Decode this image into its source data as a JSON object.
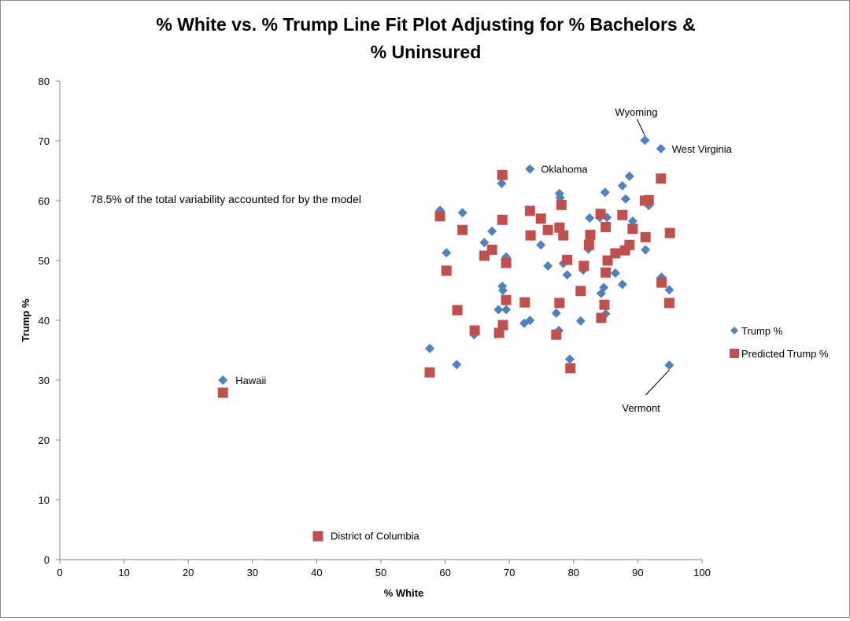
{
  "chart_data": {
    "type": "scatter",
    "title": "% White  vs. % Trump Line Fit Plot Adjusting for % Bachelors & % Uninsured",
    "title_lines": [
      "% White  vs. % Trump Line Fit Plot Adjusting for % Bachelors &",
      "% Uninsured"
    ],
    "xlabel": "% White",
    "ylabel": "Trump %",
    "xlim": [
      0,
      100
    ],
    "ylim": [
      0,
      80
    ],
    "xticks": [
      0,
      10,
      20,
      30,
      40,
      50,
      60,
      70,
      80,
      90,
      100
    ],
    "yticks": [
      0,
      10,
      20,
      30,
      40,
      50,
      60,
      70,
      80
    ],
    "grid": false,
    "legend_position": "right",
    "annotation": "78.5% of the total variability accounted for by the model",
    "series": [
      {
        "name": "Trump %",
        "marker": "diamond",
        "color": "#4f81bd",
        "points": [
          {
            "x": 25.4,
            "y": 30.0,
            "label": "Hawaii"
          },
          {
            "x": 40.2,
            "y": 4.0,
            "label": "District of Columbia"
          },
          {
            "x": 91.1,
            "y": 70.1,
            "label": "Wyoming"
          },
          {
            "x": 93.6,
            "y": 68.7,
            "label": "West Virginia"
          },
          {
            "x": 73.2,
            "y": 65.3,
            "label": "Oklahoma"
          },
          {
            "x": 94.9,
            "y": 32.5,
            "label": "Vermont"
          },
          {
            "x": 57.6,
            "y": 35.3
          },
          {
            "x": 59.2,
            "y": 58.4
          },
          {
            "x": 60.2,
            "y": 51.3
          },
          {
            "x": 61.8,
            "y": 32.6
          },
          {
            "x": 62.7,
            "y": 58.0
          },
          {
            "x": 64.5,
            "y": 37.6
          },
          {
            "x": 66.1,
            "y": 53.0
          },
          {
            "x": 67.3,
            "y": 54.9
          },
          {
            "x": 68.3,
            "y": 41.8
          },
          {
            "x": 68.8,
            "y": 62.9
          },
          {
            "x": 68.9,
            "y": 45.7
          },
          {
            "x": 69.0,
            "y": 45.0
          },
          {
            "x": 69.5,
            "y": 41.8
          },
          {
            "x": 69.5,
            "y": 50.6
          },
          {
            "x": 72.3,
            "y": 39.5
          },
          {
            "x": 73.2,
            "y": 40.0
          },
          {
            "x": 74.9,
            "y": 52.6
          },
          {
            "x": 76.0,
            "y": 49.1
          },
          {
            "x": 77.3,
            "y": 41.2
          },
          {
            "x": 77.7,
            "y": 38.3
          },
          {
            "x": 77.8,
            "y": 61.2
          },
          {
            "x": 77.9,
            "y": 60.5
          },
          {
            "x": 78.4,
            "y": 49.5
          },
          {
            "x": 79.0,
            "y": 47.6
          },
          {
            "x": 79.4,
            "y": 33.5
          },
          {
            "x": 81.1,
            "y": 39.9
          },
          {
            "x": 81.5,
            "y": 48.4
          },
          {
            "x": 82.3,
            "y": 51.9
          },
          {
            "x": 82.5,
            "y": 57.1
          },
          {
            "x": 84.1,
            "y": 57.2
          },
          {
            "x": 84.3,
            "y": 44.5
          },
          {
            "x": 84.7,
            "y": 45.5
          },
          {
            "x": 84.9,
            "y": 61.4
          },
          {
            "x": 85.0,
            "y": 41.1
          },
          {
            "x": 85.2,
            "y": 57.2
          },
          {
            "x": 86.5,
            "y": 47.9
          },
          {
            "x": 87.6,
            "y": 62.5
          },
          {
            "x": 87.6,
            "y": 46.0
          },
          {
            "x": 88.1,
            "y": 60.3
          },
          {
            "x": 88.7,
            "y": 64.1
          },
          {
            "x": 89.2,
            "y": 56.6
          },
          {
            "x": 91.2,
            "y": 51.8
          },
          {
            "x": 91.7,
            "y": 59.2
          },
          {
            "x": 93.7,
            "y": 47.2
          },
          {
            "x": 94.9,
            "y": 45.1
          }
        ]
      },
      {
        "name": "Predicted Trump %",
        "marker": "square",
        "color": "#c0504d",
        "points": [
          {
            "x": 25.4,
            "y": 27.9
          },
          {
            "x": 40.2,
            "y": 3.9
          },
          {
            "x": 57.6,
            "y": 31.3
          },
          {
            "x": 59.2,
            "y": 57.4
          },
          {
            "x": 60.2,
            "y": 48.3
          },
          {
            "x": 61.9,
            "y": 41.7
          },
          {
            "x": 62.7,
            "y": 55.1
          },
          {
            "x": 64.6,
            "y": 38.3
          },
          {
            "x": 66.1,
            "y": 50.8
          },
          {
            "x": 67.3,
            "y": 51.8
          },
          {
            "x": 68.4,
            "y": 37.9
          },
          {
            "x": 68.9,
            "y": 64.3
          },
          {
            "x": 68.9,
            "y": 56.8
          },
          {
            "x": 69.0,
            "y": 39.2
          },
          {
            "x": 69.5,
            "y": 49.6
          },
          {
            "x": 69.5,
            "y": 43.4
          },
          {
            "x": 72.4,
            "y": 43.0
          },
          {
            "x": 73.2,
            "y": 58.3
          },
          {
            "x": 73.3,
            "y": 54.2
          },
          {
            "x": 74.9,
            "y": 57.0
          },
          {
            "x": 76.0,
            "y": 55.1
          },
          {
            "x": 77.3,
            "y": 37.6
          },
          {
            "x": 77.8,
            "y": 55.5
          },
          {
            "x": 77.8,
            "y": 42.9
          },
          {
            "x": 78.1,
            "y": 59.3
          },
          {
            "x": 78.4,
            "y": 54.2
          },
          {
            "x": 79.0,
            "y": 50.1
          },
          {
            "x": 79.5,
            "y": 32.0
          },
          {
            "x": 81.1,
            "y": 44.9
          },
          {
            "x": 81.6,
            "y": 49.1
          },
          {
            "x": 82.4,
            "y": 52.6
          },
          {
            "x": 82.6,
            "y": 54.3
          },
          {
            "x": 84.2,
            "y": 57.8
          },
          {
            "x": 84.3,
            "y": 40.4
          },
          {
            "x": 84.8,
            "y": 42.6
          },
          {
            "x": 85.0,
            "y": 55.6
          },
          {
            "x": 85.0,
            "y": 48.0
          },
          {
            "x": 85.3,
            "y": 50.0
          },
          {
            "x": 86.5,
            "y": 51.2
          },
          {
            "x": 87.6,
            "y": 57.6
          },
          {
            "x": 88.0,
            "y": 51.7
          },
          {
            "x": 88.7,
            "y": 52.6
          },
          {
            "x": 89.2,
            "y": 55.3
          },
          {
            "x": 91.1,
            "y": 60.0
          },
          {
            "x": 91.2,
            "y": 53.9
          },
          {
            "x": 91.7,
            "y": 60.1
          },
          {
            "x": 93.6,
            "y": 63.7
          },
          {
            "x": 93.7,
            "y": 46.3
          },
          {
            "x": 94.9,
            "y": 42.9
          },
          {
            "x": 95.0,
            "y": 54.6
          }
        ]
      }
    ]
  }
}
